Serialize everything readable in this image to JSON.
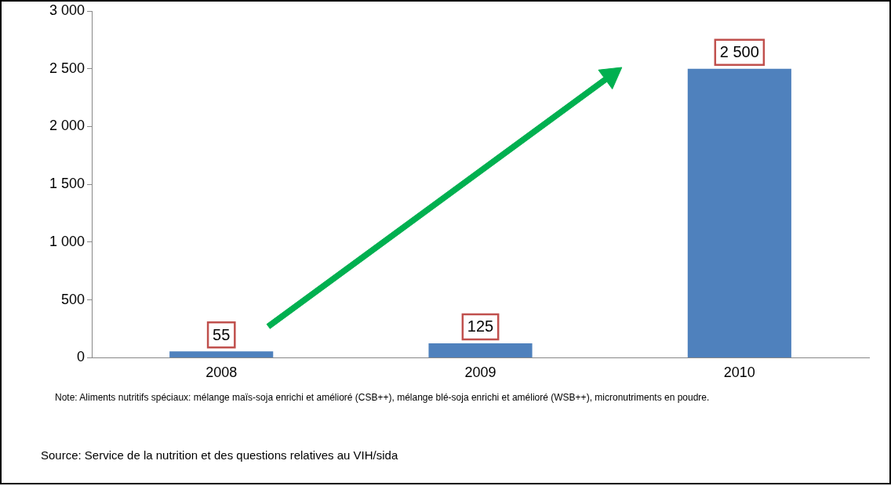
{
  "chart_data": {
    "type": "bar",
    "categories": [
      "2008",
      "2009",
      "2010"
    ],
    "values": [
      55,
      125,
      2500
    ],
    "value_labels": [
      "55",
      "125",
      "2 500"
    ],
    "color": "#4f81bd",
    "ylim": [
      0,
      3000
    ],
    "yticks": [
      {
        "value": 0,
        "label": "0"
      },
      {
        "value": 500,
        "label": "500"
      },
      {
        "value": 1000,
        "label": "1 000"
      },
      {
        "value": 1500,
        "label": "1 500"
      },
      {
        "value": 2000,
        "label": "2 000"
      },
      {
        "value": 2500,
        "label": "2 500"
      },
      {
        "value": 3000,
        "label": "3 000"
      }
    ],
    "grid": false,
    "legend": false,
    "annotations": [
      "Note: Aliments nutritifs spéciaux: mélange maïs-soja enrichi et amélioré (CSB++), mélange blé-soja enrichi et amélioré (WSB++), micronutriments en poudre.",
      "Source: Service de la nutrition et des questions relatives au VIH/sida"
    ]
  }
}
